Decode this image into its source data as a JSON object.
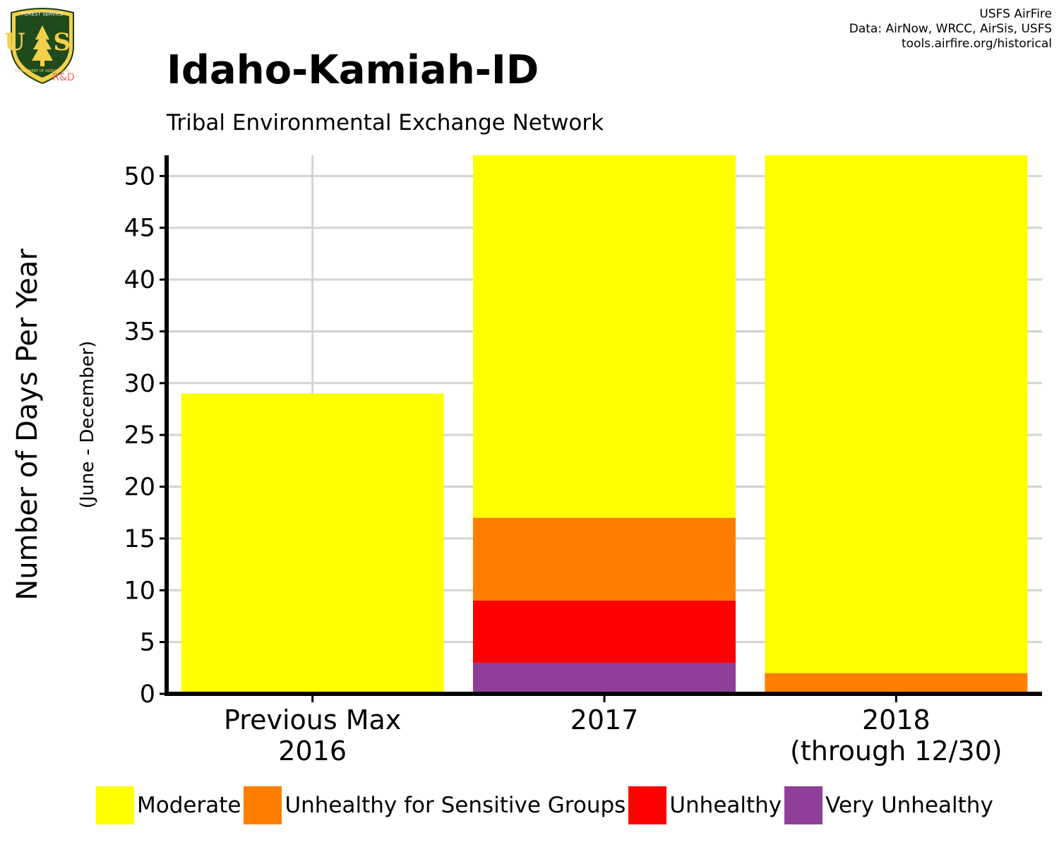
{
  "logo": {
    "icon": "usfs-shield-icon",
    "top_text": "FOREST SERVICE",
    "letters": "U S",
    "bottom_text": "DEPARTMENT OF AGRICULTURE",
    "badge": "R&D"
  },
  "credits": {
    "line1": "USFS AirFire",
    "line2": "Data: AirNow, WRCC, AirSis, USFS",
    "line3": "tools.airfire.org/historical"
  },
  "title": "Idaho-Kamiah-ID",
  "subtitle": "Tribal Environmental Exchange Network",
  "colors": {
    "moderate": "#FFFF00",
    "usg": "#FF7E00",
    "unhealthy": "#FF0000",
    "very_unhealthy": "#8F3F97",
    "grid": "#d3d3d3",
    "axis": "#000000"
  },
  "chart_data": {
    "type": "bar",
    "stacked": true,
    "categories": [
      [
        "Previous Max",
        "2016"
      ],
      [
        "2017"
      ],
      [
        "2018",
        "(through 12/30)"
      ]
    ],
    "series": [
      {
        "name": "Very Unhealthy",
        "color": "#8F3F97",
        "values": [
          0,
          3,
          0
        ]
      },
      {
        "name": "Unhealthy",
        "color": "#FF0000",
        "values": [
          0,
          6,
          0
        ]
      },
      {
        "name": "Unhealthy for Sensitive Groups",
        "color": "#FF7E00",
        "values": [
          0,
          8,
          2
        ]
      },
      {
        "name": "Moderate",
        "color": "#FFFF00",
        "values": [
          29,
          35,
          50
        ]
      }
    ],
    "legend_order": [
      "Moderate",
      "Unhealthy for Sensitive Groups",
      "Unhealthy",
      "Very Unhealthy"
    ],
    "ylabel": "Number of Days Per Year",
    "ylabel_sub": "(June - December)",
    "ylim": [
      0,
      52
    ],
    "yticks": [
      0,
      5,
      10,
      15,
      20,
      25,
      30,
      35,
      40,
      45,
      50
    ],
    "grid": true,
    "legend_position": "bottom"
  }
}
